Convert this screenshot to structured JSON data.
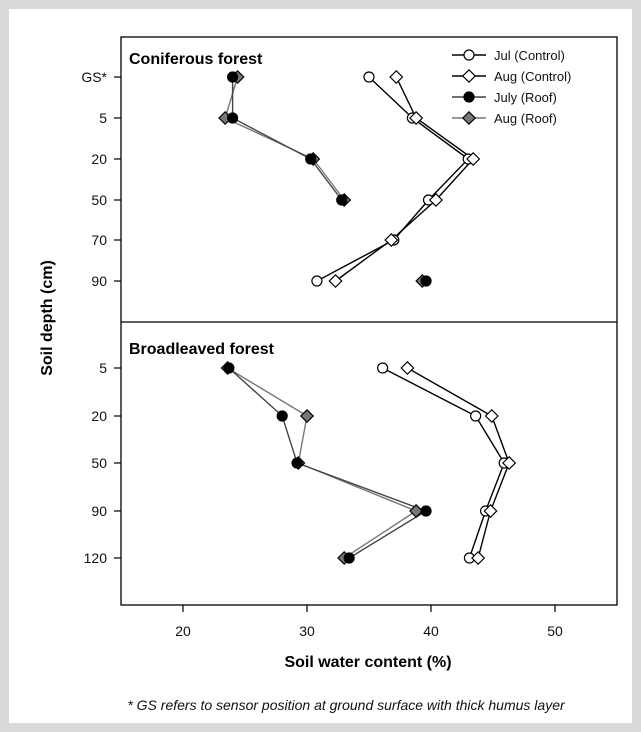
{
  "chart_data": {
    "type": "line",
    "xlabel": "Soil water content (%)",
    "ylabel": "Soil depth (cm)",
    "xlim": [
      15,
      55
    ],
    "x_ticks": [
      20,
      30,
      40,
      50
    ],
    "grid": false,
    "legend_position": "top-right",
    "legend": [
      {
        "name": "Jul (Control)",
        "marker": "circle",
        "fill": "#ffffff",
        "line": "#000000"
      },
      {
        "name": "Aug (Control)",
        "marker": "diamond",
        "fill": "#ffffff",
        "line": "#000000"
      },
      {
        "name": "July (Roof)",
        "marker": "circle",
        "fill": "#000000",
        "line": "#444444"
      },
      {
        "name": "Aug (Roof)",
        "marker": "diamond",
        "fill": "#777777",
        "line": "#777777"
      }
    ],
    "panels": [
      {
        "title": "Coniferous forest",
        "depth_labels": [
          "GS*",
          "5",
          "20",
          "50",
          "70",
          "90"
        ],
        "series": [
          {
            "name": "Jul (Control)",
            "values": [
              35.0,
              38.5,
              43.0,
              39.8,
              37.0,
              30.8
            ]
          },
          {
            "name": "Aug (Control)",
            "values": [
              37.2,
              38.8,
              43.4,
              40.4,
              36.8,
              32.3
            ]
          },
          {
            "name": "July (Roof)",
            "values": [
              24.0,
              24.0,
              30.3,
              32.8,
              null,
              39.6
            ]
          },
          {
            "name": "Aug (Roof)",
            "values": [
              24.4,
              23.4,
              30.5,
              33.0,
              null,
              39.3
            ]
          }
        ]
      },
      {
        "title": "Broadleaved forest",
        "depth_labels": [
          "5",
          "20",
          "50",
          "90",
          "120"
        ],
        "series": [
          {
            "name": "Jul (Control)",
            "values": [
              36.1,
              43.6,
              45.9,
              44.4,
              43.1
            ]
          },
          {
            "name": "Aug (Control)",
            "values": [
              38.1,
              44.9,
              46.3,
              44.8,
              43.8
            ]
          },
          {
            "name": "July (Roof)",
            "values": [
              23.7,
              28.0,
              29.2,
              39.6,
              33.4
            ]
          },
          {
            "name": "Aug (Roof)",
            "values": [
              23.6,
              30.0,
              29.3,
              38.8,
              33.0
            ]
          }
        ]
      }
    ],
    "footnote": "* GS refers to sensor position at ground surface with thick humus layer"
  }
}
